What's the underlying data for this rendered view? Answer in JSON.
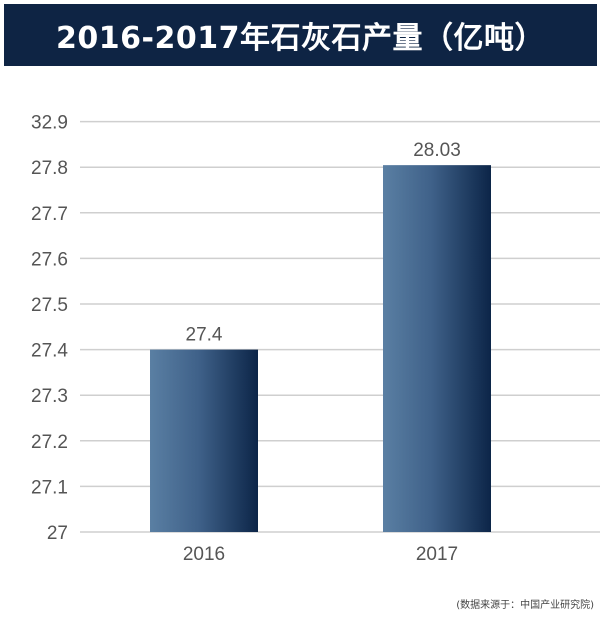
{
  "chart_data": {
    "type": "bar",
    "title": "2016-2017年石灰石产量（亿吨）",
    "categories": [
      "2016",
      "2017"
    ],
    "values": [
      27.4,
      28.03
    ],
    "data_labels": [
      "27.4",
      "28.03"
    ],
    "y_ticks": [
      "27",
      "27.1",
      "27.2",
      "27.3",
      "27.4",
      "27.5",
      "27.6",
      "27.7",
      "27.8",
      "32.9"
    ],
    "ylim": [
      27,
      32.9
    ],
    "grid": true,
    "xlabel": "",
    "ylabel": "",
    "colors": {
      "bar_light": "#5a7fa3",
      "bar_dark": "#0c2548",
      "header": "#0e2444",
      "grid": "#cfcfcf"
    }
  },
  "source": "(数据来源于：中国产业研究院)"
}
